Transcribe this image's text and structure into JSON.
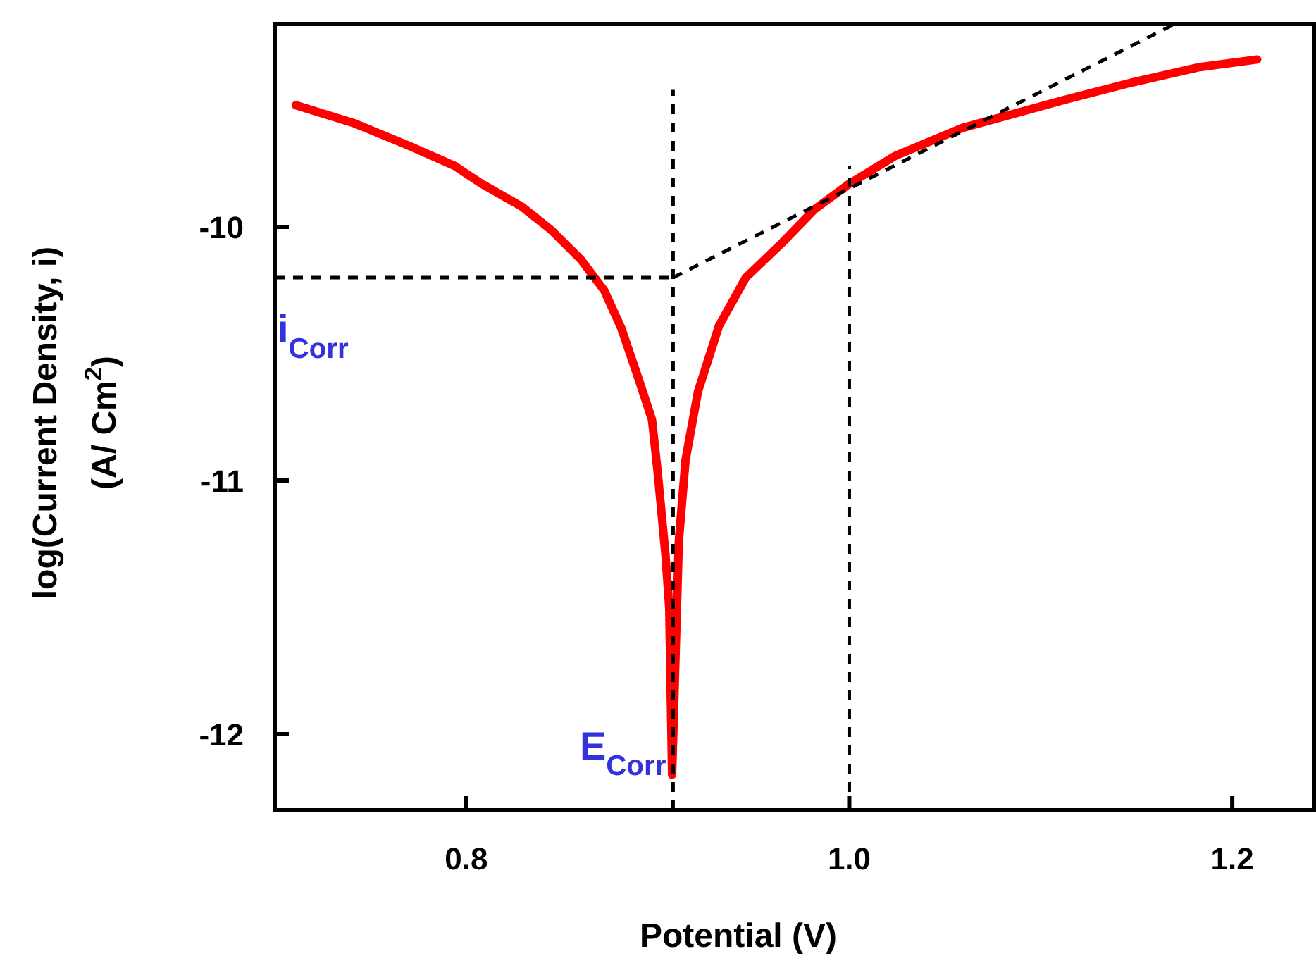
{
  "chart_data": {
    "type": "line",
    "xlabel": "Potential (V)",
    "ylabel": "log(Current Density, i)\n(A/ Cm$^{2}$)",
    "xlim": [
      0.7,
      1.243
    ],
    "ylim": [
      -12.3,
      -9.2
    ],
    "xticks": [
      {
        "value": 0.8,
        "label": "0.8"
      },
      {
        "value": 1.0,
        "label": "1.0"
      },
      {
        "value": 1.2,
        "label": "1.2"
      }
    ],
    "yticks": [
      -12,
      -11,
      -10
    ],
    "grid": false,
    "marker": "none",
    "series": [
      {
        "color": "#ff0000",
        "line_style": "solid",
        "x": [
          0.711,
          0.741,
          0.77,
          0.794,
          0.808,
          0.829,
          0.844,
          0.86,
          0.872,
          0.881,
          0.89,
          0.897,
          0.9,
          0.904,
          0.906,
          0.9075,
          0.909,
          0.911,
          0.9145,
          0.921,
          0.932,
          0.946,
          0.964,
          0.982,
          1.0,
          1.024,
          1.059,
          1.112,
          1.148,
          1.183,
          1.213
        ],
        "values": [
          -9.52,
          -9.59,
          -9.68,
          -9.76,
          -9.83,
          -9.92,
          -10.01,
          -10.13,
          -10.25,
          -10.4,
          -10.6,
          -10.76,
          -10.97,
          -11.29,
          -11.5,
          -12.16,
          -11.77,
          -11.24,
          -10.92,
          -10.65,
          -10.39,
          -10.2,
          -10.07,
          -9.93,
          -9.83,
          -9.72,
          -9.61,
          -9.5,
          -9.43,
          -9.37,
          -9.34
        ]
      },
      {
        "color": "#000000",
        "line_style": "dashed",
        "x": [
          0.908,
          1.17
        ],
        "values": [
          -10.2,
          -9.2
        ]
      },
      {
        "color": "#000000",
        "line_style": "dashed",
        "x": [
          0.7,
          0.908
        ],
        "values": [
          -10.2,
          -10.2
        ]
      },
      {
        "color": "#000000",
        "line_style": "dashed",
        "x": [
          0.908,
          0.908
        ],
        "values": [
          -12.3,
          -9.46
        ]
      },
      {
        "color": "#000000",
        "line_style": "dashed",
        "x": [
          1.0,
          1.0
        ],
        "values": [
          -12.3,
          -9.76
        ]
      }
    ],
    "annotations": [
      {
        "text": "i$_{Corr}$",
        "x": 0.7,
        "y": -10.2
      },
      {
        "text": "E$_{Corr}$",
        "x": 0.908,
        "y": -12.3
      }
    ]
  }
}
